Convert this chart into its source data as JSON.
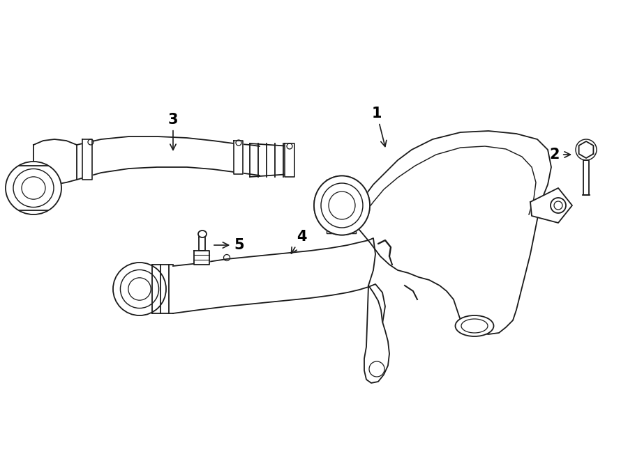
{
  "bg_color": "#ffffff",
  "line_color": "#1a1a1a",
  "label_color": "#000000",
  "font_size_labels": 15,
  "lw": 1.3,
  "figw": 9.0,
  "figh": 6.62,
  "dpi": 100
}
